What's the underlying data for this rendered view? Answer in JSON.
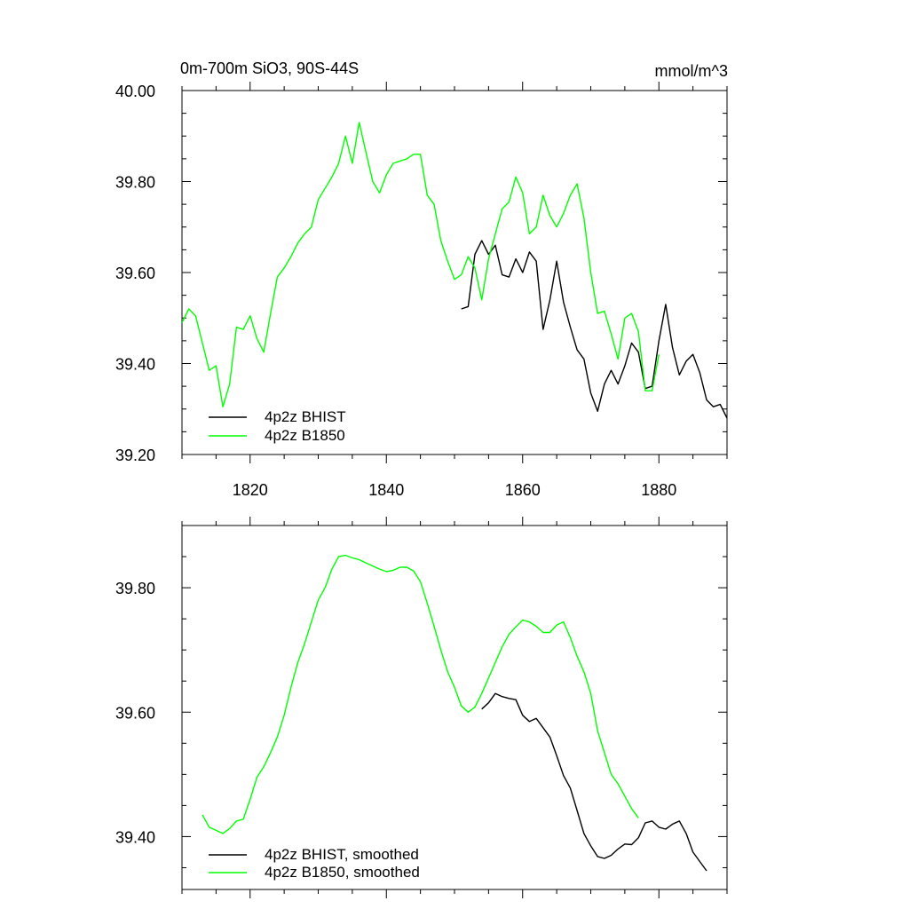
{
  "chart_data": [
    {
      "type": "line",
      "title": "0m-700m SiO3, 90S-44S",
      "units": "mmol/m^3",
      "xlim": [
        1810,
        1890
      ],
      "ylim": [
        39.2,
        40.0
      ],
      "xticks": [
        1820,
        1840,
        1860,
        1880
      ],
      "xtick_labels": [
        "1820",
        "1840",
        "1860",
        "1880"
      ],
      "yticks": [
        39.2,
        39.4,
        39.6,
        39.8,
        40.0
      ],
      "ytick_labels": [
        "39.20",
        "39.40",
        "39.60",
        "39.80",
        "40.00"
      ],
      "legend_position": "bottom-left",
      "series": [
        {
          "name": "4p2z BHIST",
          "color": "#000000",
          "x": [
            1851,
            1852,
            1853,
            1854,
            1855,
            1856,
            1857,
            1858,
            1859,
            1860,
            1861,
            1862,
            1863,
            1864,
            1865,
            1866,
            1867,
            1868,
            1869,
            1870,
            1871,
            1872,
            1873,
            1874,
            1875,
            1876,
            1877,
            1878,
            1879,
            1880,
            1881,
            1882,
            1883,
            1884,
            1885,
            1886,
            1887,
            1888,
            1889,
            1890
          ],
          "y": [
            39.52,
            39.525,
            39.64,
            39.67,
            39.64,
            39.66,
            39.595,
            39.59,
            39.63,
            39.6,
            39.645,
            39.625,
            39.475,
            39.54,
            39.625,
            39.535,
            39.48,
            39.43,
            39.41,
            39.335,
            39.295,
            39.355,
            39.385,
            39.355,
            39.395,
            39.445,
            39.425,
            39.345,
            39.35,
            39.45,
            39.53,
            39.435,
            39.375,
            39.405,
            39.42,
            39.38,
            39.32,
            39.305,
            39.31,
            39.28
          ]
        },
        {
          "name": "4p2z B1850",
          "color": "#00ff00",
          "x": [
            1810,
            1811,
            1812,
            1813,
            1814,
            1815,
            1816,
            1817,
            1818,
            1819,
            1820,
            1821,
            1822,
            1823,
            1824,
            1825,
            1826,
            1827,
            1828,
            1829,
            1830,
            1831,
            1832,
            1833,
            1834,
            1835,
            1836,
            1837,
            1838,
            1839,
            1840,
            1841,
            1842,
            1843,
            1844,
            1845,
            1846,
            1847,
            1848,
            1849,
            1850,
            1851,
            1852,
            1853,
            1854,
            1855,
            1856,
            1857,
            1858,
            1859,
            1860,
            1861,
            1862,
            1863,
            1864,
            1865,
            1866,
            1867,
            1868,
            1869,
            1870,
            1871,
            1872,
            1873,
            1874,
            1875,
            1876,
            1877,
            1878,
            1879,
            1880
          ],
          "y": [
            39.49,
            39.52,
            39.505,
            39.445,
            39.385,
            39.395,
            39.305,
            39.355,
            39.48,
            39.475,
            39.505,
            39.455,
            39.425,
            39.51,
            39.59,
            39.61,
            39.635,
            39.665,
            39.685,
            39.7,
            39.76,
            39.785,
            39.81,
            39.84,
            39.9,
            39.84,
            39.93,
            39.865,
            39.8,
            39.775,
            39.815,
            39.84,
            39.845,
            39.85,
            39.86,
            39.86,
            39.77,
            39.75,
            39.67,
            39.625,
            39.585,
            39.595,
            39.635,
            39.61,
            39.54,
            39.63,
            39.685,
            39.74,
            39.755,
            39.81,
            39.775,
            39.685,
            39.7,
            39.77,
            39.725,
            39.7,
            39.73,
            39.77,
            39.795,
            39.72,
            39.6,
            39.51,
            39.515,
            39.465,
            39.41,
            39.5,
            39.51,
            39.47,
            39.34,
            39.34,
            39.42
          ]
        }
      ]
    },
    {
      "type": "line",
      "title": "",
      "xlim": [
        1810,
        1890
      ],
      "ylim": [
        39.315,
        39.9
      ],
      "xticks": [
        1820,
        1840,
        1860,
        1880
      ],
      "yticks": [
        39.4,
        39.6,
        39.8
      ],
      "ytick_labels": [
        "39.40",
        "39.60",
        "39.80"
      ],
      "legend_position": "bottom-left",
      "series": [
        {
          "name": "4p2z BHIST, smoothed",
          "color": "#000000",
          "x": [
            1854,
            1855,
            1856,
            1857,
            1858,
            1859,
            1860,
            1861,
            1862,
            1863,
            1864,
            1865,
            1866,
            1867,
            1868,
            1869,
            1870,
            1871,
            1872,
            1873,
            1874,
            1875,
            1876,
            1877,
            1878,
            1879,
            1880,
            1881,
            1882,
            1883,
            1884,
            1885,
            1886,
            1887
          ],
          "y": [
            39.605,
            39.615,
            39.63,
            39.625,
            39.622,
            39.62,
            39.595,
            39.585,
            39.59,
            39.575,
            39.56,
            39.53,
            39.498,
            39.478,
            39.442,
            39.405,
            39.385,
            39.368,
            39.365,
            39.37,
            39.38,
            39.388,
            39.387,
            39.398,
            39.422,
            39.425,
            39.415,
            39.412,
            39.42,
            39.425,
            39.405,
            39.375,
            39.36,
            39.345
          ]
        },
        {
          "name": "4p2z B1850, smoothed",
          "color": "#00ff00",
          "x": [
            1813,
            1814,
            1815,
            1816,
            1817,
            1818,
            1819,
            1820,
            1821,
            1822,
            1823,
            1824,
            1825,
            1826,
            1827,
            1828,
            1829,
            1830,
            1831,
            1832,
            1833,
            1834,
            1835,
            1836,
            1837,
            1838,
            1839,
            1840,
            1841,
            1842,
            1843,
            1844,
            1845,
            1846,
            1847,
            1848,
            1849,
            1850,
            1851,
            1852,
            1853,
            1854,
            1855,
            1856,
            1857,
            1858,
            1859,
            1860,
            1861,
            1862,
            1863,
            1864,
            1865,
            1866,
            1867,
            1868,
            1869,
            1870,
            1871,
            1872,
            1873,
            1874,
            1875,
            1876,
            1877
          ],
          "y": [
            39.435,
            39.415,
            39.41,
            39.405,
            39.413,
            39.425,
            39.428,
            39.46,
            39.495,
            39.512,
            39.535,
            39.56,
            39.595,
            39.64,
            39.68,
            39.71,
            39.745,
            39.78,
            39.8,
            39.83,
            39.85,
            39.852,
            39.848,
            39.845,
            39.84,
            39.835,
            39.83,
            39.826,
            39.828,
            39.833,
            39.833,
            39.827,
            39.81,
            39.775,
            39.738,
            39.7,
            39.665,
            39.64,
            39.61,
            39.6,
            39.608,
            39.63,
            39.655,
            39.68,
            39.705,
            39.725,
            39.737,
            39.748,
            39.745,
            39.738,
            39.728,
            39.728,
            39.74,
            39.745,
            39.72,
            39.69,
            39.665,
            39.63,
            39.57,
            39.535,
            39.5,
            39.485,
            39.465,
            39.445,
            39.43
          ]
        }
      ]
    }
  ]
}
